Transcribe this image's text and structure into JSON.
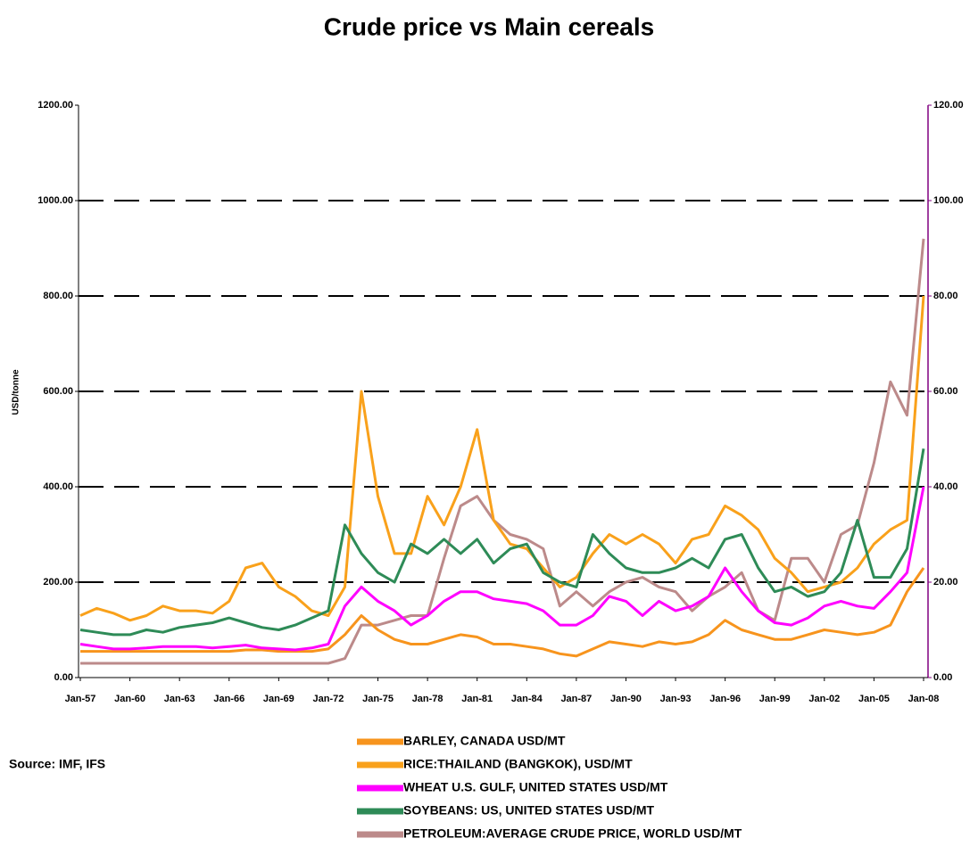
{
  "chart_data": {
    "type": "line",
    "title": "Crude price vs Main cereals",
    "y_label": "USD/tonne",
    "source": "Source: IMF, IFS",
    "categories": [
      "Jan-57",
      null,
      null,
      "Jan-60",
      null,
      null,
      "Jan-63",
      null,
      null,
      "Jan-66",
      null,
      null,
      "Jan-69",
      null,
      null,
      "Jan-72",
      null,
      null,
      "Jan-75",
      null,
      null,
      "Jan-78",
      null,
      null,
      "Jan-81",
      null,
      null,
      "Jan-84",
      null,
      null,
      "Jan-87",
      null,
      null,
      "Jan-90",
      null,
      null,
      "Jan-93",
      null,
      null,
      "Jan-96",
      null,
      null,
      "Jan-99",
      null,
      null,
      "Jan-02",
      null,
      null,
      "Jan-05",
      null,
      null,
      "Jan-08"
    ],
    "ylim": [
      0,
      1200
    ],
    "yticks": [
      {
        "value": 0,
        "label": "0.00"
      },
      {
        "value": 200,
        "label": "200.00"
      },
      {
        "value": 400,
        "label": "400.00"
      },
      {
        "value": 600,
        "label": "600.00"
      },
      {
        "value": 800,
        "label": "800.00"
      },
      {
        "value": 1000,
        "label": "1000.00"
      },
      {
        "value": 1200,
        "label": "1200.00"
      }
    ],
    "y2lim": [
      0,
      120
    ],
    "y2ticks": [
      {
        "value": 0,
        "label": "0.00"
      },
      {
        "value": 20,
        "label": "20.00"
      },
      {
        "value": 40,
        "label": "40.00"
      },
      {
        "value": 60,
        "label": "60.00"
      },
      {
        "value": 80,
        "label": "80.00"
      },
      {
        "value": 100,
        "label": "100.00"
      },
      {
        "value": 120,
        "label": "120.00"
      }
    ],
    "grid": true,
    "series": [
      {
        "name": "BARLEY, CANADA USD/MT",
        "color": "#f7941d",
        "values": [
          55,
          55,
          55,
          55,
          55,
          55,
          55,
          55,
          55,
          55,
          58,
          58,
          55,
          55,
          55,
          60,
          90,
          130,
          100,
          80,
          70,
          70,
          80,
          90,
          85,
          70,
          70,
          65,
          60,
          50,
          45,
          60,
          75,
          70,
          65,
          75,
          70,
          75,
          90,
          120,
          100,
          90,
          80,
          80,
          90,
          100,
          95,
          90,
          95,
          110,
          180,
          230
        ]
      },
      {
        "name": "RICE:THAILAND (BANGKOK), USD/MT",
        "color": "#f9a11b",
        "values": [
          130,
          145,
          135,
          120,
          130,
          150,
          140,
          140,
          135,
          160,
          230,
          240,
          190,
          170,
          140,
          130,
          190,
          600,
          380,
          260,
          260,
          380,
          320,
          400,
          520,
          330,
          280,
          270,
          230,
          190,
          210,
          260,
          300,
          280,
          300,
          280,
          240,
          290,
          300,
          360,
          340,
          310,
          250,
          220,
          180,
          190,
          200,
          230,
          280,
          310,
          330,
          800
        ]
      },
      {
        "name": "WHEAT U.S. GULF, UNITED STATES USD/MT",
        "color": "#ff00ff",
        "values": [
          70,
          65,
          60,
          60,
          62,
          65,
          65,
          65,
          62,
          65,
          68,
          62,
          60,
          58,
          62,
          70,
          150,
          190,
          160,
          140,
          110,
          130,
          160,
          180,
          180,
          165,
          160,
          155,
          140,
          110,
          110,
          130,
          170,
          160,
          130,
          160,
          140,
          150,
          170,
          230,
          180,
          140,
          115,
          110,
          125,
          150,
          160,
          150,
          145,
          180,
          220,
          400
        ]
      },
      {
        "name": "SOYBEANS: US, UNITED STATES USD/MT",
        "color": "#2e8b57",
        "values": [
          100,
          95,
          90,
          90,
          100,
          95,
          105,
          110,
          115,
          125,
          115,
          105,
          100,
          110,
          125,
          140,
          320,
          260,
          220,
          200,
          280,
          260,
          290,
          260,
          290,
          240,
          270,
          280,
          220,
          200,
          190,
          300,
          260,
          230,
          220,
          220,
          230,
          250,
          230,
          290,
          300,
          230,
          180,
          190,
          170,
          180,
          220,
          330,
          210,
          210,
          270,
          480
        ]
      },
      {
        "name": "PETROLEUM:AVERAGE CRUDE PRICE, WORLD USD/MT",
        "color": "#bc8a8a",
        "axis": "y2",
        "values": [
          3,
          3,
          3,
          3,
          3,
          3,
          3,
          3,
          3,
          3,
          3,
          3,
          3,
          3,
          3,
          3,
          4,
          11,
          11,
          12,
          13,
          13,
          25,
          36,
          38,
          33,
          30,
          29,
          27,
          15,
          18,
          15,
          18,
          20,
          21,
          19,
          18,
          14,
          17,
          19,
          22,
          14,
          12,
          25,
          25,
          20,
          30,
          32,
          45,
          62,
          55,
          92
        ]
      }
    ]
  }
}
